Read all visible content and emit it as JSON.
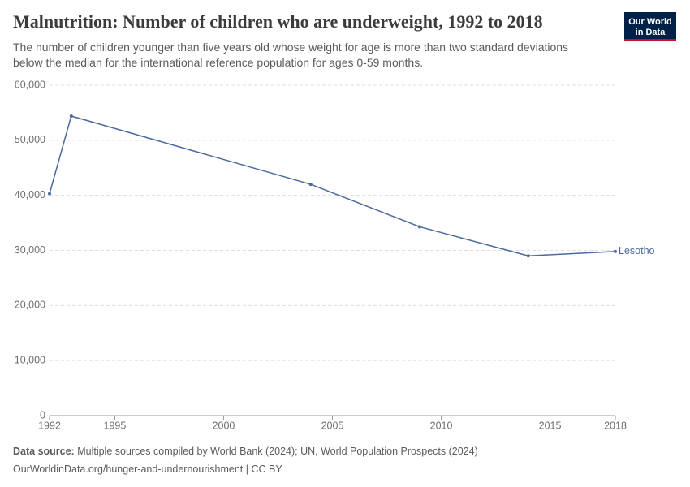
{
  "chart_data": {
    "type": "line",
    "title": "Malnutrition: Number of children who are underweight, 1992 to 2018",
    "subtitle": [
      "The number of children younger than five years old whose weight for age is more than two standard deviations",
      "below the median for the international reference population for ages 0-59 months."
    ],
    "x": [
      1992,
      1993,
      2004,
      2009,
      2014,
      2018
    ],
    "series": [
      {
        "name": "Lesotho",
        "color": "#4c6a9c",
        "values": [
          40300,
          54400,
          42000,
          34300,
          29000,
          29800
        ]
      }
    ],
    "xlim": [
      1992,
      2018
    ],
    "xticks": [
      1992,
      1995,
      2000,
      2005,
      2010,
      2015,
      2018
    ],
    "ylim": [
      0,
      60000
    ],
    "yticks": [
      0,
      {
        "value": 10000,
        "label": "10,000"
      },
      {
        "value": 20000,
        "label": "20,000"
      },
      {
        "value": 30000,
        "label": "30,000"
      },
      {
        "value": 40000,
        "label": "40,000"
      },
      {
        "value": 50000,
        "label": "50,000"
      },
      {
        "value": 60000,
        "label": "60,000"
      }
    ],
    "grid": true,
    "source_label": "Data source:",
    "source": "Multiple sources compiled by World Bank (2024); UN, World Population Prospects (2024)",
    "url": "OurWorldinData.org/hunger-and-undernourishment | CC BY"
  },
  "logo": [
    "Our World",
    "in Data"
  ]
}
